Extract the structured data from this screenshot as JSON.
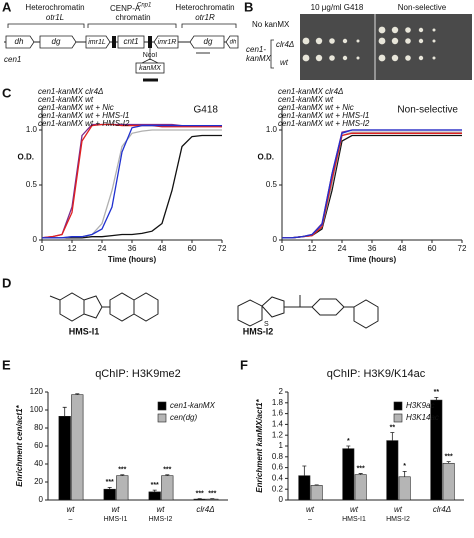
{
  "panel_labels": [
    "A",
    "B",
    "C",
    "D",
    "E",
    "F"
  ],
  "panel_a": {
    "heterochromatin_left": "Heterochromatin",
    "otr_left": "otr1L",
    "cenp": "CENP-A",
    "cenp_sup": "Cnp1",
    "cenp_tail": "chromatin",
    "heterochromatin_right": "Heterochromatin",
    "otr_right": "otr1R",
    "elements": [
      "dh",
      "dg",
      "imr1L",
      "cnt1",
      "imr1R",
      "dg",
      "dh"
    ],
    "cen": "cen1",
    "site": "NcoI",
    "marker": "kanMX"
  },
  "panel_b": {
    "conditions": [
      "10 μg/ml G418",
      "Non-selective"
    ],
    "rows": [
      "No kanMX",
      "clr4Δ",
      "wt"
    ],
    "group": [
      "cen1-",
      "kanMX"
    ]
  },
  "panel_d": {
    "compounds": [
      "HMS-I1",
      "HMS-I2"
    ]
  },
  "chart_data": [
    {
      "type": "line",
      "annotation": "G418",
      "xlabel": "Time (hours)",
      "ylabel": "O.D.",
      "x": [
        0,
        4,
        8,
        12,
        16,
        20,
        24,
        28,
        32,
        36,
        40,
        44,
        48,
        52,
        56,
        60,
        64,
        68,
        72
      ],
      "xlim": [
        0,
        72
      ],
      "xticks": [
        0,
        12,
        24,
        36,
        48,
        60,
        72
      ],
      "ylim": [
        0,
        1.2
      ],
      "yticks": [
        0,
        0.5,
        {
          "value": 1,
          "label": "1.0"
        }
      ],
      "series": [
        {
          "name": "cen1-kanMX clr4Δ",
          "color": "#7a2a8c",
          "values": [
            0.02,
            0.03,
            0.05,
            0.3,
            0.95,
            1.05,
            1.05,
            1.05,
            1.05,
            1.05,
            1.05,
            1.05,
            1.05,
            1.05,
            1.04,
            1.04,
            1.04,
            1.04,
            1.03
          ]
        },
        {
          "name": "cen1-kanMX wt",
          "color": "#111111",
          "values": [
            0.02,
            0.02,
            0.02,
            0.02,
            0.02,
            0.03,
            0.03,
            0.04,
            0.05,
            0.05,
            0.06,
            0.08,
            0.15,
            0.45,
            0.85,
            0.94,
            0.95,
            0.95,
            0.95
          ]
        },
        {
          "name": "cen1-kanMX wt + Nic",
          "color": "#b0b0b0",
          "values": [
            0.02,
            0.02,
            0.02,
            0.03,
            0.03,
            0.05,
            0.15,
            0.45,
            0.85,
            0.97,
            0.99,
            1.0,
            1.0,
            1.0,
            1.0,
            1.0,
            1.0,
            1.0,
            1.0
          ]
        },
        {
          "name": "cen1-kanMX wt + HMS-I1",
          "color": "#e02020",
          "values": [
            0.02,
            0.03,
            0.05,
            0.25,
            0.9,
            1.04,
            1.05,
            1.05,
            1.04,
            1.04,
            1.04,
            1.04,
            1.03,
            1.03,
            1.03,
            1.03,
            1.03,
            1.03,
            1.03
          ]
        },
        {
          "name": "cen1-kanMX wt + HMS-I2",
          "color": "#2030d0",
          "values": [
            0.02,
            0.02,
            0.02,
            0.03,
            0.03,
            0.05,
            0.1,
            0.3,
            0.8,
            1.02,
            1.04,
            1.04,
            1.04,
            1.04,
            1.04,
            1.04,
            1.04,
            1.04,
            1.04
          ]
        }
      ]
    },
    {
      "type": "line",
      "annotation": "Non-selective",
      "xlabel": "Time (hours)",
      "ylabel": "O.D.",
      "x": [
        0,
        4,
        8,
        12,
        16,
        20,
        24,
        28,
        32,
        36,
        40,
        44,
        48,
        52,
        56,
        60,
        64,
        68,
        72
      ],
      "xlim": [
        0,
        72
      ],
      "xticks": [
        0,
        12,
        24,
        36,
        48,
        60,
        72
      ],
      "ylim": [
        0,
        1.2
      ],
      "yticks": [
        0,
        0.5,
        {
          "value": 1,
          "label": "1.0"
        }
      ],
      "series": [
        {
          "name": "cen1-kanMX clr4Δ",
          "color": "#7a2a8c",
          "values": [
            0.02,
            0.02,
            0.03,
            0.05,
            0.15,
            0.6,
            0.98,
            1.0,
            1.0,
            1.0,
            1.0,
            1.0,
            1.0,
            1.0,
            1.0,
            1.0,
            1.0,
            1.0,
            1.0
          ]
        },
        {
          "name": "cen1-kanMX wt",
          "color": "#111111",
          "values": [
            0.02,
            0.02,
            0.03,
            0.04,
            0.1,
            0.45,
            0.9,
            0.95,
            0.95,
            0.95,
            0.95,
            0.95,
            0.95,
            0.95,
            0.95,
            0.95,
            0.95,
            0.95,
            0.95
          ]
        },
        {
          "name": "cen1-kanMX wt + Nic",
          "color": "#b0b0b0",
          "values": [
            0.02,
            0.02,
            0.03,
            0.04,
            0.12,
            0.5,
            0.95,
            0.98,
            0.98,
            0.98,
            0.98,
            0.98,
            0.98,
            0.98,
            0.98,
            0.98,
            0.98,
            0.98,
            0.98
          ]
        },
        {
          "name": "cen1-kanMX wt + HMS-I1",
          "color": "#e02020",
          "values": [
            0.02,
            0.02,
            0.03,
            0.04,
            0.12,
            0.55,
            0.95,
            0.97,
            0.97,
            0.97,
            0.97,
            0.97,
            0.97,
            0.97,
            0.97,
            0.97,
            0.97,
            0.97,
            0.97
          ]
        },
        {
          "name": "cen1-kanMX wt + HMS-I2",
          "color": "#2030d0",
          "values": [
            0.02,
            0.02,
            0.03,
            0.05,
            0.14,
            0.6,
            0.97,
            1.0,
            1.0,
            1.0,
            1.0,
            1.0,
            1.0,
            1.0,
            1.0,
            1.0,
            1.0,
            1.0,
            1.0
          ]
        }
      ]
    },
    {
      "type": "bar",
      "title": "qChIP: H3K9me2",
      "ylabel": "Enrichment cen/act1*",
      "categories": [
        "wt",
        "wt",
        "wt",
        "clr4Δ"
      ],
      "sublabels": [
        "–",
        "HMS-I1",
        "HMS-I2",
        null
      ],
      "ylim": [
        0,
        120
      ],
      "yticks": [
        0,
        20,
        40,
        60,
        80,
        100,
        120
      ],
      "series": [
        {
          "name": "cen1-kanMX",
          "color": "#000000",
          "values": [
            93,
            12,
            9,
            1
          ],
          "errors": [
            10,
            2,
            2,
            0.5
          ],
          "stars": [
            null,
            "***",
            "***",
            "***"
          ]
        },
        {
          "name": "cen(dg)",
          "color": "#b5b5b5",
          "values": [
            117,
            27,
            27,
            1
          ],
          "errors": [
            1,
            1,
            1,
            0.5
          ],
          "stars": [
            null,
            "***",
            "***",
            "***"
          ]
        }
      ]
    },
    {
      "type": "bar",
      "title": "qChIP: H3K9/K14ac",
      "ylabel": "Enrichment kanMX/act1*",
      "categories": [
        "wt",
        "wt",
        "wt",
        "clr4Δ"
      ],
      "sublabels": [
        "–",
        "HMS-I1",
        "HMS-I2",
        null
      ],
      "ylim": [
        0,
        2
      ],
      "yticks": [
        0,
        0.2,
        0.4,
        0.6,
        0.8,
        1,
        1.2,
        1.4,
        1.6,
        1.8,
        2
      ],
      "series": [
        {
          "name": "H3K9ac",
          "color": "#000000",
          "values": [
            0.45,
            0.95,
            1.1,
            1.85
          ],
          "errors": [
            0.18,
            0.05,
            0.15,
            0.05
          ],
          "stars": [
            null,
            "*",
            "**",
            "**"
          ]
        },
        {
          "name": "H3K14ac",
          "color": "#b5b5b5",
          "values": [
            0.27,
            0.47,
            0.43,
            0.68
          ],
          "errors": [
            0.01,
            0.02,
            0.1,
            0.03
          ],
          "stars": [
            null,
            "***",
            "*",
            "***"
          ]
        }
      ]
    }
  ]
}
